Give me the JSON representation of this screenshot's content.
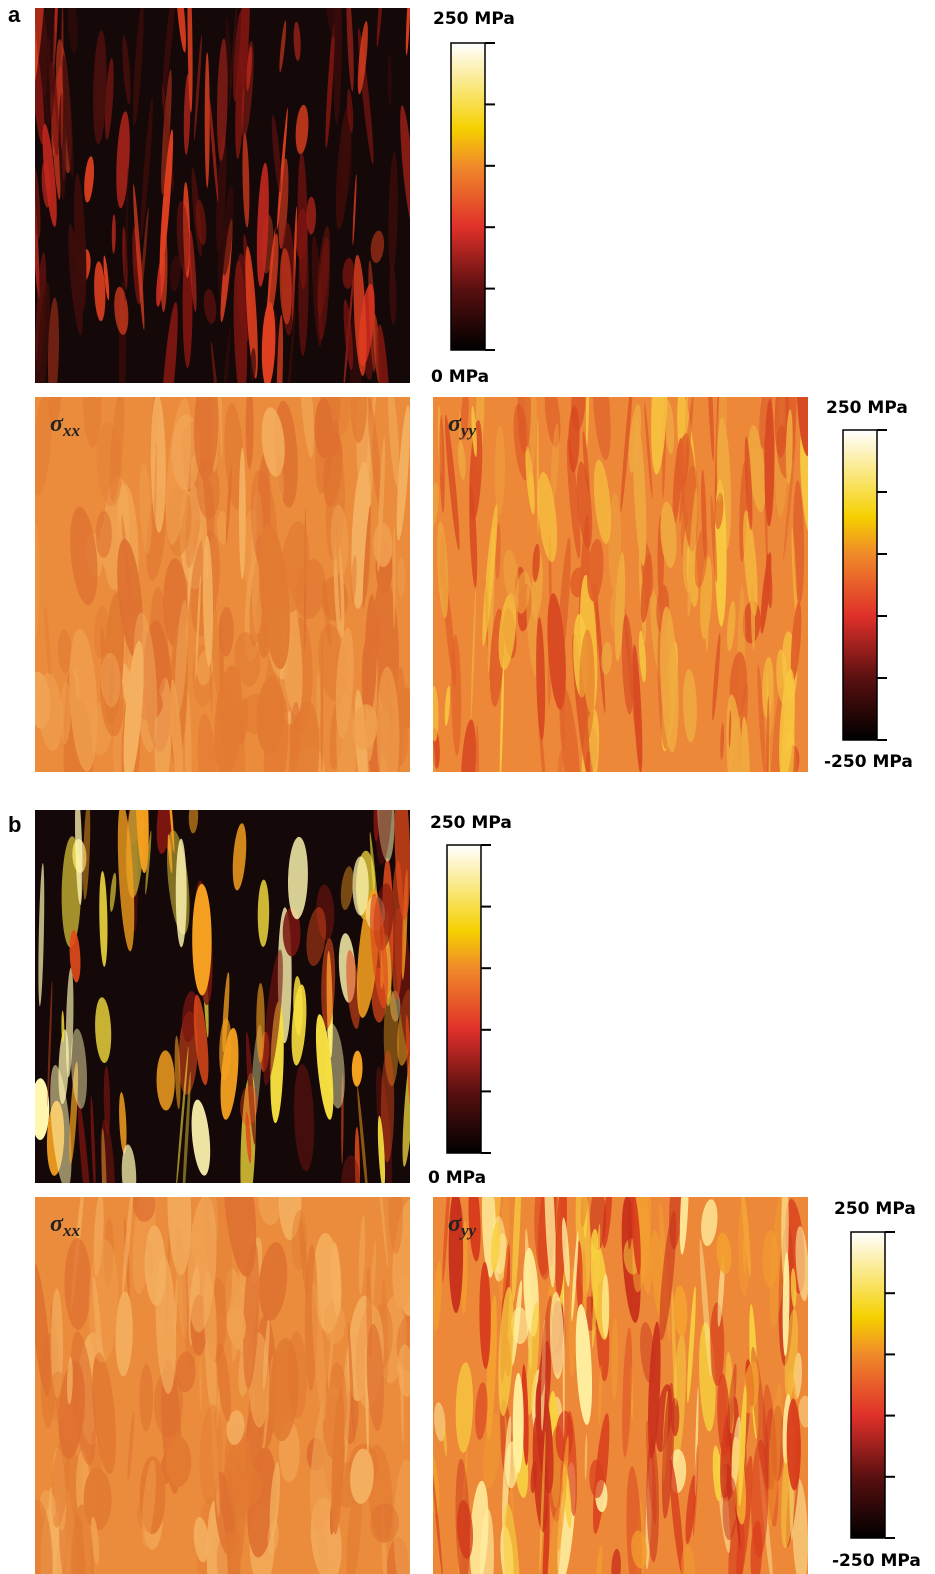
{
  "panels": [
    {
      "label": "a",
      "magnitude_scale": {
        "max_label": "250 MPa",
        "min_label": "0 MPa"
      },
      "components": [
        {
          "symbol": "σ",
          "subscript": "xx"
        },
        {
          "symbol": "σ",
          "subscript": "yy"
        }
      ],
      "component_scale": {
        "max_label": "250 MPa",
        "min_label": "-250 MPa"
      }
    },
    {
      "label": "b",
      "magnitude_scale": {
        "max_label": "250 MPa",
        "min_label": "0 MPa"
      },
      "components": [
        {
          "symbol": "σ",
          "subscript": "xx"
        },
        {
          "symbol": "σ",
          "subscript": "yy"
        }
      ],
      "component_scale": {
        "max_label": "250 MPa",
        "min_label": "-250 MPa"
      }
    }
  ]
}
